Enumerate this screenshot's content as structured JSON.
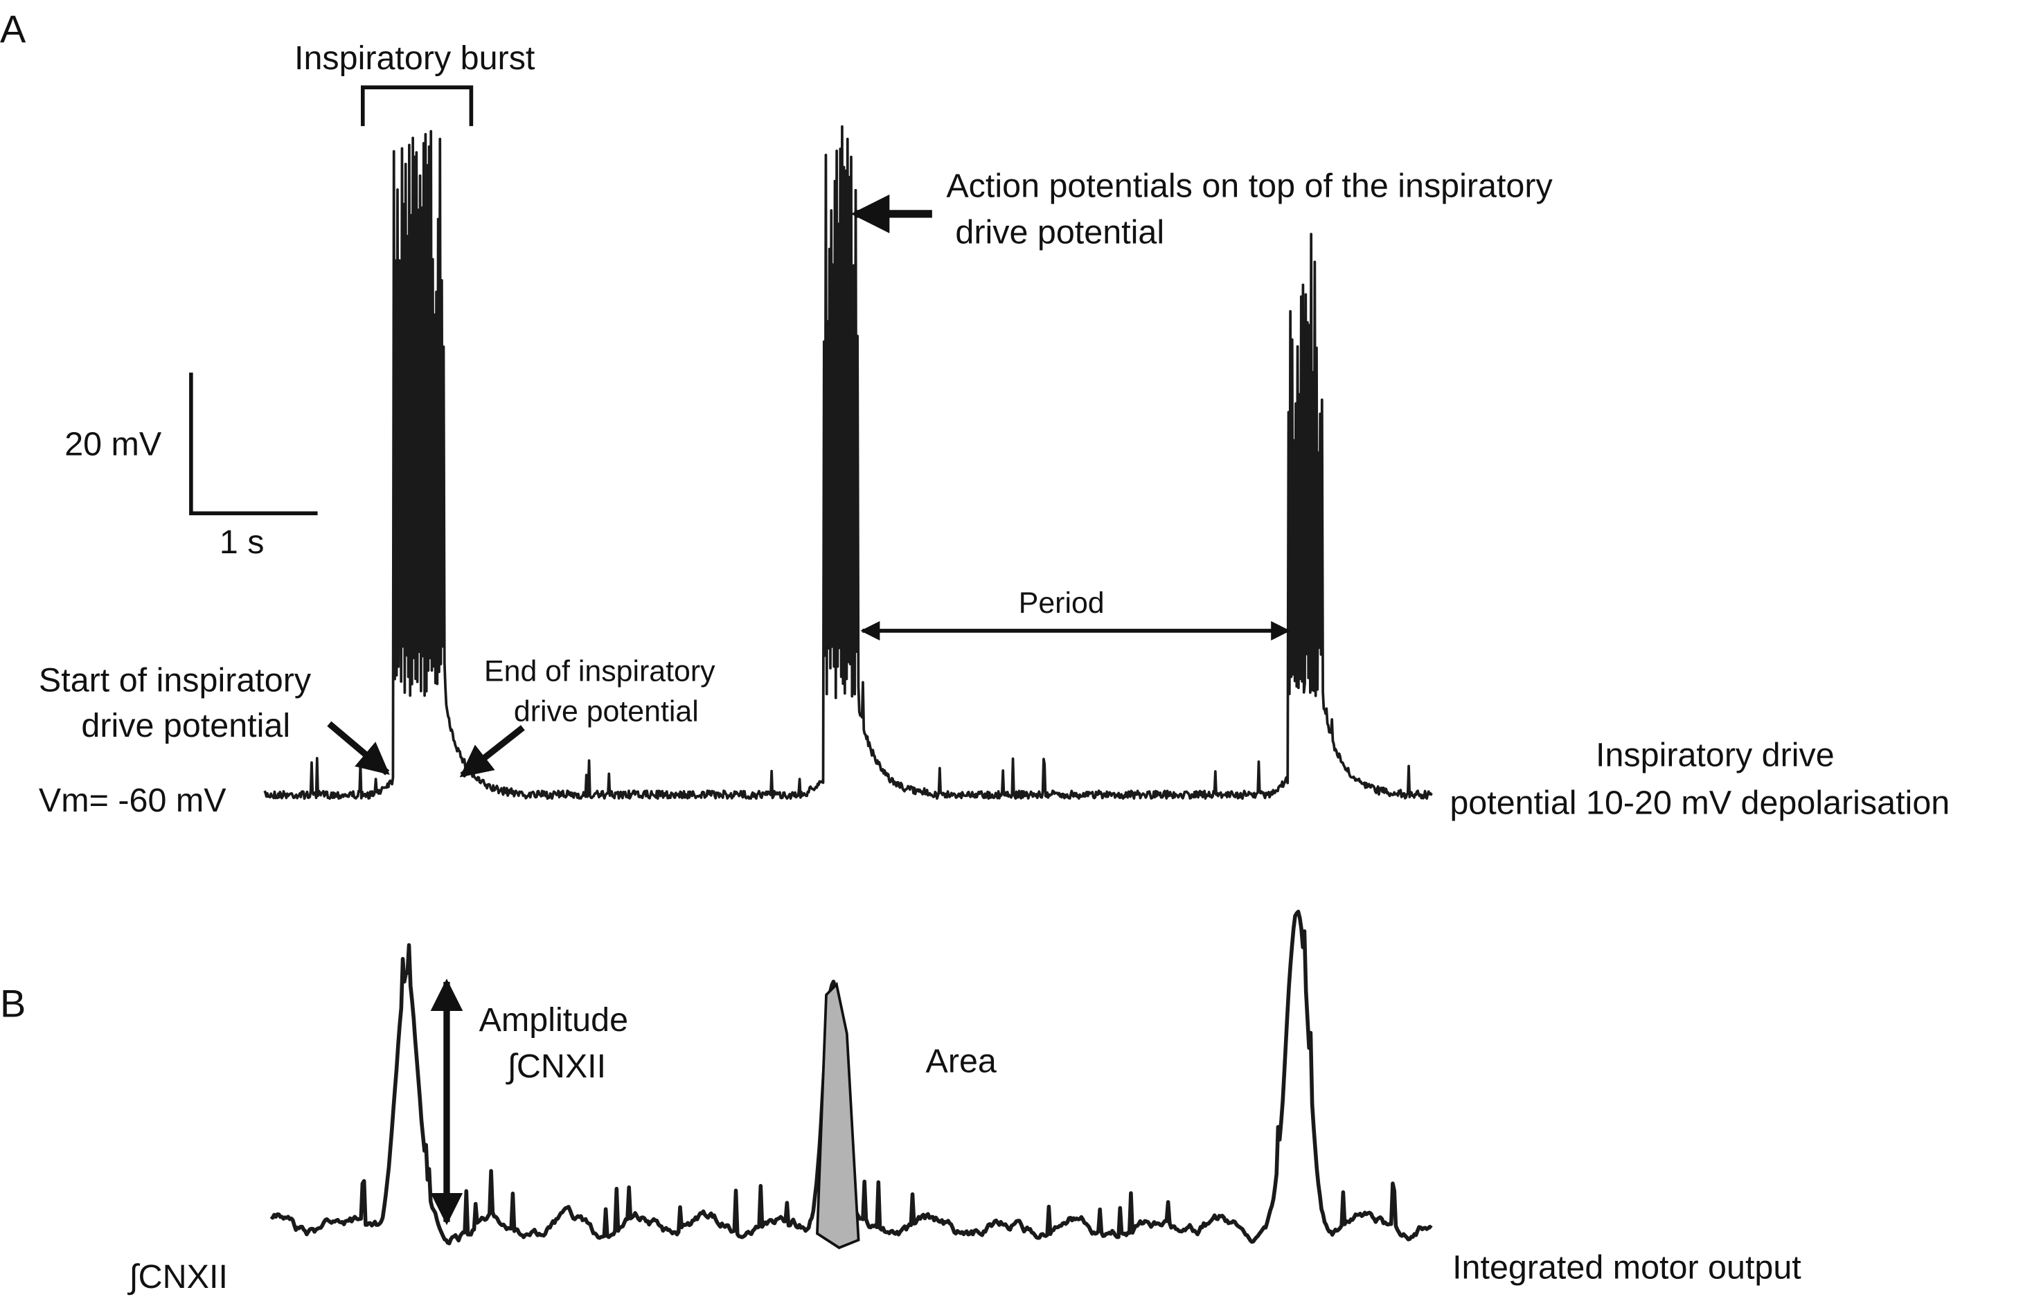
{
  "panels": {
    "a_label": "A",
    "b_label": "B"
  },
  "panel_a": {
    "burst_label": "Inspiratory burst",
    "ap_label_line1": "Action potentials on top of the inspiratory",
    "ap_label_line2": "drive potential",
    "scale_v": "20 mV",
    "scale_h": "1 s",
    "period_label": "Period",
    "start_line1": "Start of inspiratory",
    "start_line2": "drive potential",
    "end_line1": "End of inspiratory",
    "end_line2": "drive potential",
    "vm_label": "Vm= -60 mV",
    "drive_line1": "Inspiratory drive",
    "drive_line2": "potential 10-20 mV depolarisation"
  },
  "panel_b": {
    "amplitude_line1": "Amplitude",
    "amplitude_line2": "∫CNXII",
    "area_label": "Area",
    "trace_label": "∫CNXII",
    "output_label": "Integrated motor output"
  },
  "colors": {
    "trace": "#1a1a1a",
    "area_fill": "#b3b3b3"
  }
}
